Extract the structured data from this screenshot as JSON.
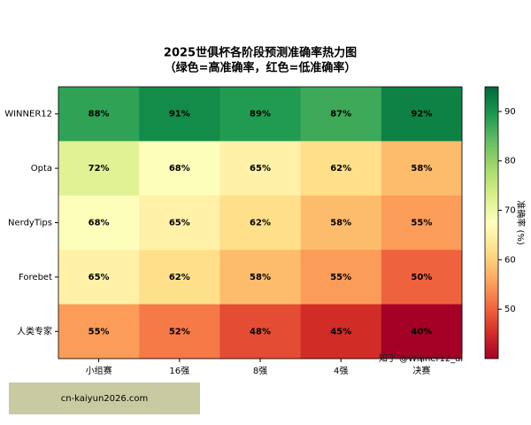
{
  "chart_data": {
    "type": "heatmap",
    "title": "2025世俱杯各阶段预测准确率热力图",
    "subtitle": "（绿色=高准确率，红色=低准确率）",
    "x_categories": [
      "小组赛",
      "16强",
      "8强",
      "4强",
      "决赛"
    ],
    "y_categories": [
      "WINNER12",
      "Opta",
      "NerdyTips",
      "Forebet",
      "人类专家"
    ],
    "values": [
      [
        88,
        91,
        89,
        87,
        92
      ],
      [
        72,
        68,
        65,
        62,
        58
      ],
      [
        68,
        65,
        62,
        58,
        55
      ],
      [
        65,
        62,
        58,
        55,
        50
      ],
      [
        55,
        52,
        48,
        45,
        40
      ]
    ],
    "value_labels": [
      [
        "88%",
        "91%",
        "89%",
        "87%",
        "92%"
      ],
      [
        "72%",
        "68%",
        "65%",
        "62%",
        "58%"
      ],
      [
        "68%",
        "65%",
        "62%",
        "58%",
        "55%"
      ],
      [
        "65%",
        "62%",
        "58%",
        "55%",
        "50%"
      ],
      [
        "55%",
        "52%",
        "48%",
        "45%",
        "40%"
      ]
    ],
    "colormap": "RdYlGn",
    "colorbar_label": "准确率 (%)",
    "vlim": [
      40,
      95
    ],
    "colorbar_ticks": [
      50,
      60,
      70,
      80,
      90
    ]
  },
  "watermarks": {
    "overlay": "知乎 @Winner12_ai",
    "banner": "cn-kaiyun2026.com"
  }
}
